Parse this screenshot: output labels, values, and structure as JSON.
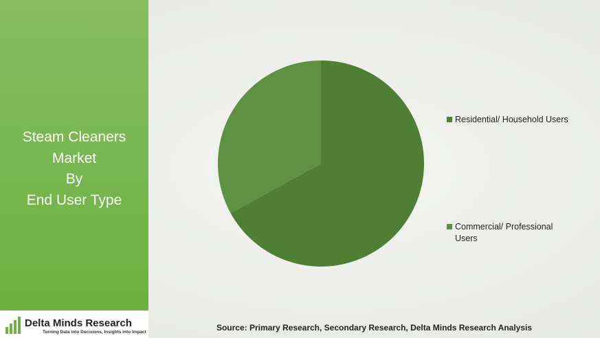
{
  "chart_data": {
    "type": "pie",
    "title_lines": [
      "Steam Cleaners",
      "Market",
      "By",
      "End User Type"
    ],
    "categories": [
      "Residential/ Household Users",
      "Commercial/ Professional Users"
    ],
    "values": [
      67,
      33
    ],
    "colors": [
      "#4f7e35",
      "#5f9142"
    ],
    "source": "Source: Primary Research, Secondary Research, Delta Minds Research Analysis"
  },
  "logo": {
    "name": "Delta Minds Research",
    "tagline": "Turning Data into Decisions, Insights into Impact"
  }
}
